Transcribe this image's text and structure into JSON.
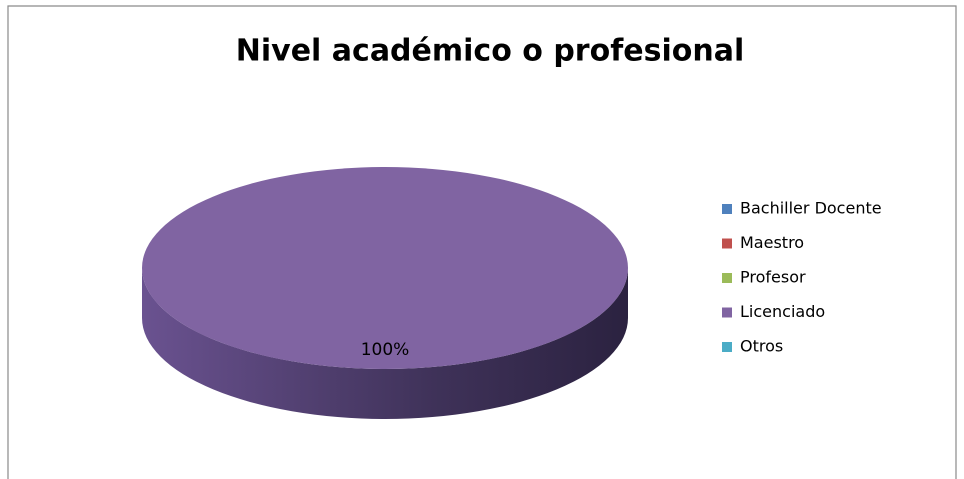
{
  "chart_data": {
    "type": "pie",
    "title": "Nivel académico o profesional",
    "categories": [
      "Bachiller Docente",
      "Maestro",
      "Profesor",
      "Licenciado",
      "Otros"
    ],
    "values": [
      0,
      0,
      0,
      100,
      0
    ],
    "value_labels": [
      null,
      null,
      null,
      "100%",
      null
    ],
    "colors": [
      "#4f81bd",
      "#c0504d",
      "#9bbb59",
      "#8064a2",
      "#4bacc6"
    ],
    "legend": "right"
  }
}
